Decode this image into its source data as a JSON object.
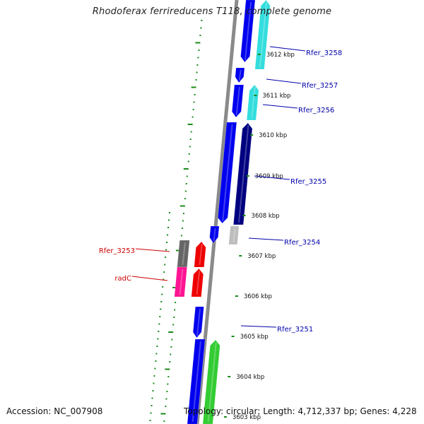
{
  "title": "Rhodoferax ferrireducens T118, complete genome",
  "footer": {
    "accession": "Accession: NC_007908",
    "summary": "Topology: circular; Length: 4,712,337 bp; Genes: 4,228"
  },
  "scale": {
    "ticks": [
      {
        "label": "3612 kbp"
      },
      {
        "label": "3611 kbp"
      },
      {
        "label": "3610 kbp"
      },
      {
        "label": "3609 kbp"
      },
      {
        "label": "3608 kbp"
      },
      {
        "label": "3607 kbp"
      },
      {
        "label": "3606 kbp"
      },
      {
        "label": "3605 kbp"
      },
      {
        "label": "3604 kbp"
      },
      {
        "label": "3603 kbp"
      }
    ]
  },
  "genes": [
    {
      "label": "Rfer_3258",
      "color": "#0000aa"
    },
    {
      "label": "Rfer_3257",
      "color": "#0000aa"
    },
    {
      "label": "Rfer_3256",
      "color": "#0000aa"
    },
    {
      "label": "Rfer_3255",
      "color": "#0000aa"
    },
    {
      "label": "Rfer_3254",
      "color": "#0000aa"
    },
    {
      "label": "Rfer_3253",
      "color": "#cc0000"
    },
    {
      "label": "radC",
      "color": "#cc0000"
    },
    {
      "label": "Rfer_3251",
      "color": "#0000aa"
    }
  ],
  "colors": {
    "backbone": "#8a8a8a",
    "gc_dots": "#1a8a1a",
    "cds_blue": "#0000ee",
    "cds_navy": "#000080",
    "cds_cyan": "#33dddd",
    "cds_grey": "#bdbdbd",
    "cds_darkgrey": "#666666",
    "cds_red": "#ee0000",
    "cds_pink": "#ff1493",
    "cds_green": "#33cc33"
  }
}
